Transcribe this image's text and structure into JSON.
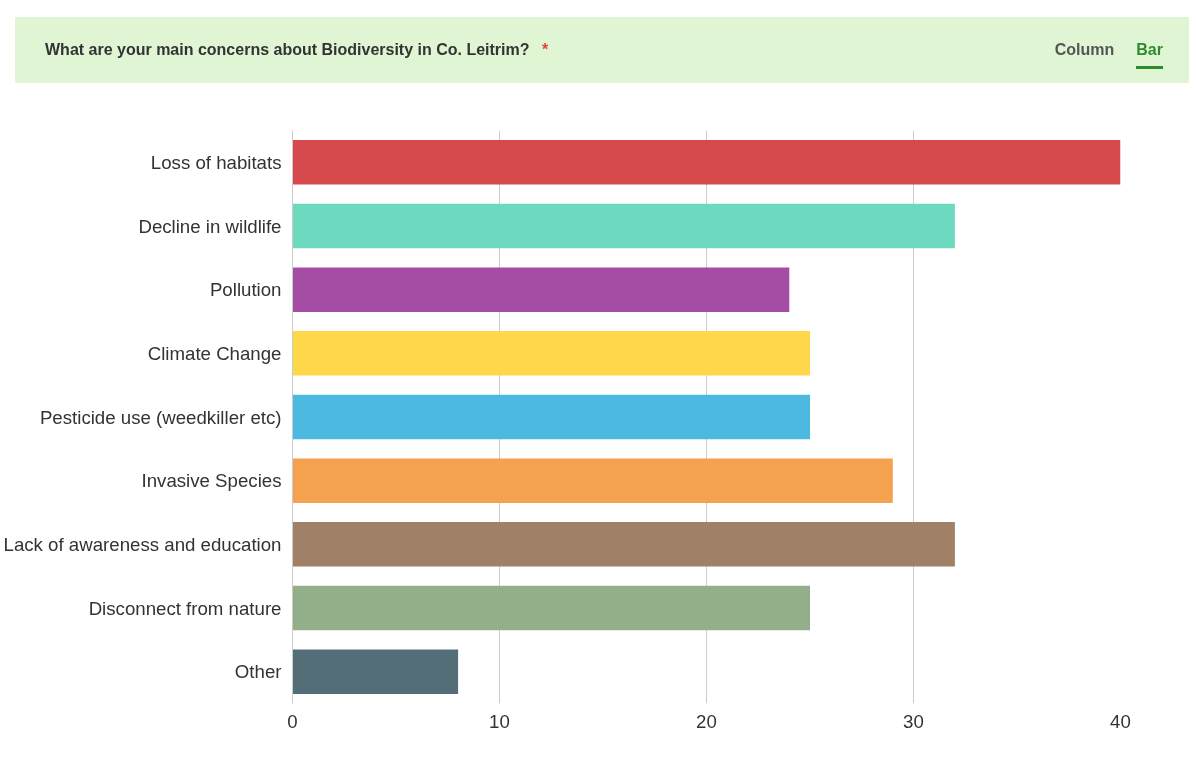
{
  "chart_data": {
    "type": "bar",
    "orientation": "horizontal",
    "title": "What are your main concerns about Biodiversity in Co. Leitrim?",
    "annotations": [
      "*",
      "Column",
      "Bar"
    ],
    "categories": [
      "Loss of habitats",
      "Decline in wildlife",
      "Pollution",
      "Climate Change",
      "Pesticide use (weedkiller etc)",
      "Invasive Species",
      "Lack of awareness and education",
      "Disconnect from nature",
      "Other"
    ],
    "values": [
      40,
      32,
      24,
      25,
      25,
      29,
      32,
      25,
      8
    ],
    "colors": [
      "#d6494c",
      "#6dd9bf",
      "#a54ca5",
      "#fed84a",
      "#4cbae0",
      "#f4a24f",
      "#a08167",
      "#93af8a",
      "#546e77"
    ],
    "xlim": [
      0,
      40
    ],
    "xticks": [
      0,
      10,
      20,
      30,
      40
    ],
    "grid": "x"
  }
}
